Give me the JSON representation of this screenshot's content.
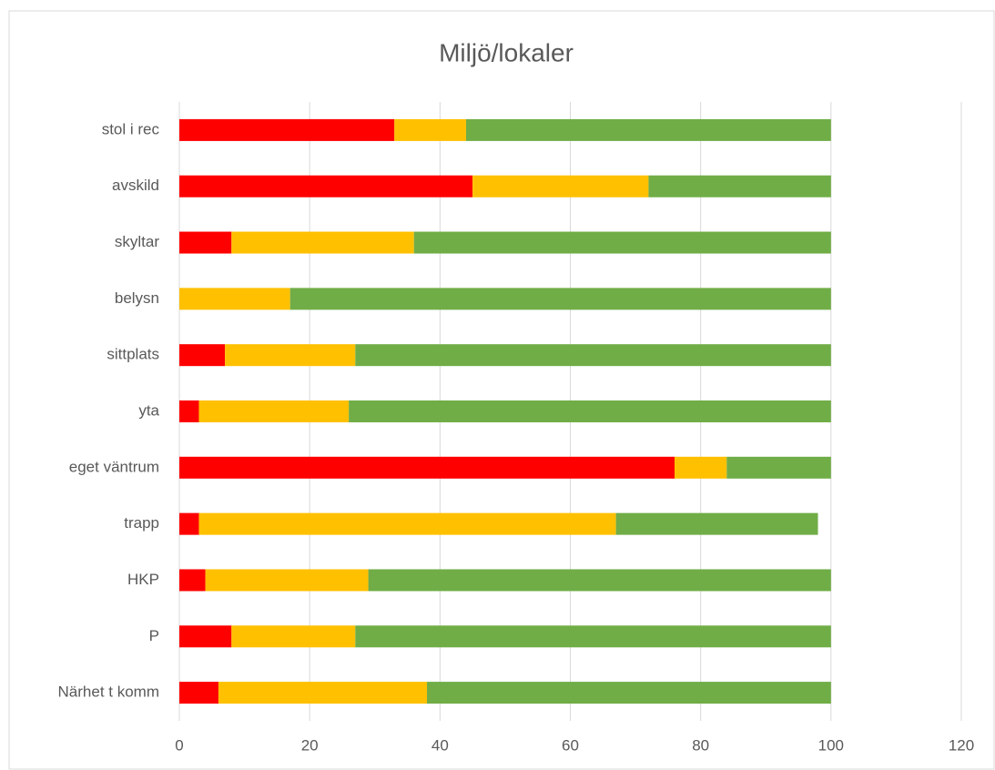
{
  "chart_data": {
    "type": "bar",
    "orientation": "horizontal",
    "stacked": true,
    "title": "Miljö/lokaler",
    "categories": [
      "stol i rec",
      "avskild",
      "skyltar",
      "belysn",
      "sittplats",
      "yta",
      "eget väntrum",
      "trapp",
      "HKP",
      "P",
      "Närhet t komm"
    ],
    "series": [
      {
        "color": "#ff0000",
        "values": [
          33,
          45,
          8,
          0,
          7,
          3,
          76,
          3,
          4,
          8,
          6
        ]
      },
      {
        "color": "#ffc000",
        "values": [
          11,
          27,
          28,
          17,
          20,
          23,
          8,
          64,
          25,
          19,
          32
        ]
      },
      {
        "color": "#70ad47",
        "values": [
          56,
          28,
          64,
          83,
          73,
          74,
          16,
          31,
          71,
          73,
          62
        ]
      }
    ],
    "xlim": [
      0,
      120
    ],
    "xticks": [
      0,
      20,
      40,
      60,
      80,
      100,
      120
    ],
    "grid": true
  }
}
